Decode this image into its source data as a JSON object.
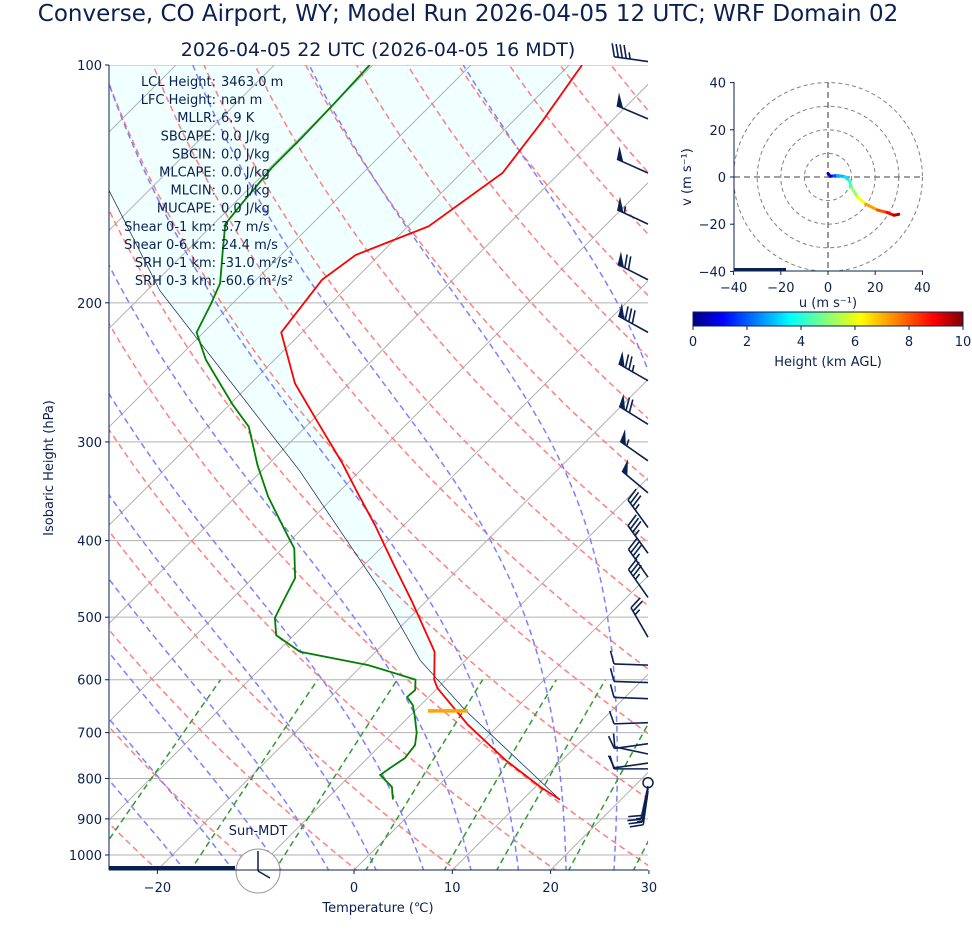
{
  "title": "Converse, CO Airport, WY; Model Run 2026-04-05 12 UTC; WRF Domain 02",
  "subtitle": "2026-04-05 22 UTC  (2026-04-05 16 MDT)",
  "colors": {
    "text": "#0a2050",
    "temperature": "#ff0000",
    "dewpoint": "#008000",
    "parcel": "#0a2050",
    "dry_adiabat": "#ff7f7f",
    "moist_adiabat": "#7f7fff",
    "mixing_ratio": "#339933",
    "isotherm": "#b0b0b0",
    "cin_fill": "#f0ffff",
    "lcl": "#ffa500"
  },
  "stats": [
    {
      "label": "LCL Height:",
      "value": "3463.0 m"
    },
    {
      "label": "LFC Height:",
      "value": "nan m"
    },
    {
      "label": "MLLR:",
      "value": "6.9 K"
    },
    {
      "label": "SBCAPE:",
      "value": "0.0 J/kg"
    },
    {
      "label": "SBCIN:",
      "value": "0.0 J/kg"
    },
    {
      "label": "MLCAPE:",
      "value": "0.0 J/kg"
    },
    {
      "label": "MLCIN:",
      "value": "0.0 J/kg"
    },
    {
      "label": "MUCAPE:",
      "value": "0.0 J/kg"
    },
    {
      "label": "Shear 0-1 km:",
      "value": "3.7 m/s"
    },
    {
      "label": "Shear 0-6 km:",
      "value": "24.4 m/s"
    },
    {
      "label": "SRH 0-1 km:",
      "value": "-31.0 m²/s²"
    },
    {
      "label": "SRH 0-3 km:",
      "value": "-60.6 m²/s²"
    }
  ],
  "clock_label": "Sun-MDT",
  "chart_data": [
    {
      "type": "line",
      "subtype": "skew-t",
      "xlabel": "Temperature (℃)",
      "ylabel": "Isobaric Height (hPa)",
      "xlim": [
        -25,
        30
      ],
      "ylim": [
        1045,
        100
      ],
      "yscale": "log",
      "xticks": [
        -20,
        0,
        10,
        20,
        30
      ],
      "yticks": [
        100,
        200,
        300,
        400,
        500,
        600,
        700,
        800,
        900,
        1000
      ],
      "grid": true,
      "series": [
        {
          "name": "temperature",
          "points": [
            [
              851,
              13.8
            ],
            [
              820,
              10.5
            ],
            [
              758,
              4.2
            ],
            [
              684,
              -3.2
            ],
            [
              615,
              -10.0
            ],
            [
              600,
              -11.2
            ],
            [
              553,
              -14.0
            ],
            [
              476,
              -21.6
            ],
            [
              430,
              -26.9
            ],
            [
              382,
              -33.0
            ],
            [
              350,
              -37.7
            ],
            [
              319,
              -42.6
            ],
            [
              285,
              -48.9
            ],
            [
              253,
              -55.5
            ],
            [
              218,
              -62.1
            ],
            [
              187,
              -63.3
            ],
            [
              174,
              -62.4
            ],
            [
              160,
              -57.9
            ],
            [
              137,
              -55.8
            ],
            [
              118,
              -57.0
            ],
            [
              100,
              -58.7
            ]
          ]
        },
        {
          "name": "dewpoint",
          "points": [
            [
              851,
              -3.2
            ],
            [
              820,
              -4.6
            ],
            [
              792,
              -7.0
            ],
            [
              776,
              -6.7
            ],
            [
              754,
              -6.2
            ],
            [
              726,
              -6.5
            ],
            [
              700,
              -7.6
            ],
            [
              665,
              -9.6
            ],
            [
              646,
              -10.8
            ],
            [
              631,
              -12.2
            ],
            [
              618,
              -12.1
            ],
            [
              600,
              -13.1
            ],
            [
              587,
              -16.3
            ],
            [
              575,
              -19.4
            ],
            [
              553,
              -27.7
            ],
            [
              527,
              -31.8
            ],
            [
              501,
              -33.7
            ],
            [
              473,
              -34.7
            ],
            [
              446,
              -35.7
            ],
            [
              409,
              -38.8
            ],
            [
              394,
              -40.8
            ],
            [
              352,
              -46.7
            ],
            [
              321,
              -51.0
            ],
            [
              287,
              -55.8
            ],
            [
              269,
              -59.7
            ],
            [
              250,
              -63.8
            ],
            [
              236,
              -67.0
            ],
            [
              218,
              -70.7
            ],
            [
              201,
              -72.1
            ],
            [
              189,
              -73.3
            ],
            [
              171,
              -76.5
            ],
            [
              159,
              -78.8
            ],
            [
              150,
              -79.2
            ],
            [
              135,
              -79.8
            ],
            [
              124,
              -79.8
            ],
            [
              111,
              -80.0
            ],
            [
              100,
              -80.3
            ]
          ]
        },
        {
          "name": "parcel",
          "points": [
            [
              851,
              13.8
            ],
            [
              657,
              -4.8
            ],
            [
              567,
              -14.6
            ],
            [
              462,
              -25.8
            ],
            [
              326,
              -46.2
            ],
            [
              193,
              -78.7
            ],
            [
              144,
              -94.1
            ]
          ]
        }
      ],
      "lcl": {
        "pressure": 657,
        "temperature": -4.8
      },
      "wind_barbs": [
        [
          99,
          278,
          45
        ],
        [
          117,
          293,
          50
        ],
        [
          137,
          294,
          50
        ],
        [
          159,
          295,
          55
        ],
        [
          187,
          297,
          70
        ],
        [
          218,
          299,
          80
        ],
        [
          251,
          300,
          75
        ],
        [
          285,
          302,
          70
        ],
        [
          317,
          305,
          55
        ],
        [
          348,
          310,
          50
        ],
        [
          385,
          324,
          35
        ],
        [
          415,
          324,
          35
        ],
        [
          445,
          325,
          35
        ],
        [
          472,
          325,
          35
        ],
        [
          530,
          330,
          25
        ],
        [
          575,
          272,
          10
        ],
        [
          605,
          272,
          10
        ],
        [
          634,
          272,
          10
        ],
        [
          680,
          268,
          10
        ],
        [
          723,
          262,
          10
        ],
        [
          745,
          282,
          10
        ],
        [
          765,
          262,
          10
        ],
        [
          778,
          270,
          10
        ],
        [
          810,
          0,
          0
        ],
        [
          818,
          192,
          20
        ],
        [
          824,
          190,
          15
        ],
        [
          830,
          188,
          15
        ]
      ]
    },
    {
      "type": "line",
      "subtype": "hodograph",
      "xlabel": "u (m s⁻¹)",
      "ylabel": "v (m s⁻¹)",
      "xlim": [
        -40,
        40
      ],
      "ylim": [
        -40,
        40
      ],
      "xticks": [
        -40,
        -20,
        0,
        20,
        40
      ],
      "yticks": [
        -40,
        -20,
        0,
        20,
        40
      ],
      "rings": [
        10,
        20,
        30,
        40
      ],
      "points": [
        [
          0,
          1.5,
          0
        ],
        [
          1,
          0.3,
          0.5
        ],
        [
          2.5,
          0.5,
          1
        ],
        [
          4,
          0.6,
          2
        ],
        [
          7,
          0.2,
          3
        ],
        [
          9,
          -1.5,
          3.5
        ],
        [
          10,
          -4.5,
          4.3
        ],
        [
          12.5,
          -8.5,
          5.2
        ],
        [
          16,
          -11.5,
          6.2
        ],
        [
          21,
          -14,
          7.2
        ],
        [
          25,
          -15,
          8
        ],
        [
          28,
          -16.2,
          8.8
        ],
        [
          30,
          -15.8,
          9.5
        ]
      ],
      "colorbar": {
        "label": "Height (km AGL)",
        "ticks": [
          0,
          2,
          4,
          6,
          8,
          10
        ],
        "range": [
          0,
          10
        ],
        "colormap": "jet"
      }
    }
  ]
}
